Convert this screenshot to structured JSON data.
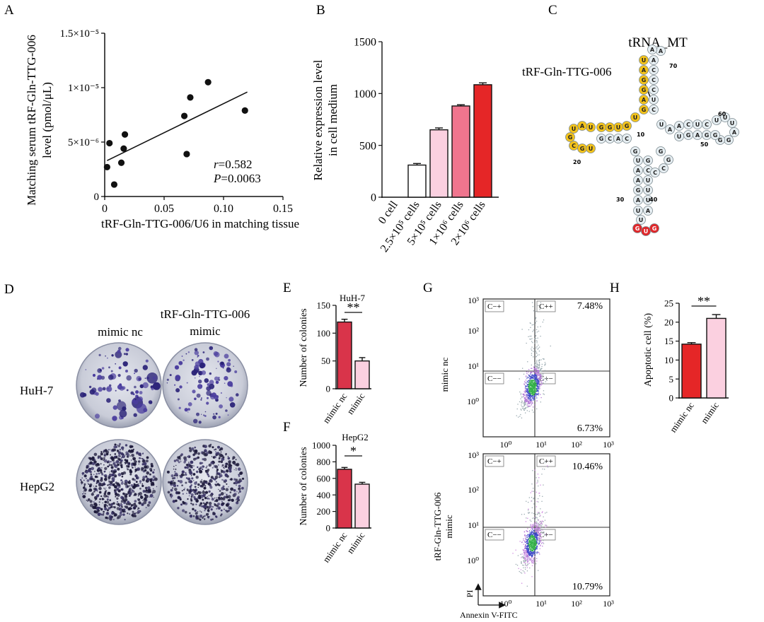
{
  "panel_labels": [
    "A",
    "B",
    "C",
    "D",
    "E",
    "F",
    "G",
    "H"
  ],
  "chart_data": [
    {
      "id": "A",
      "type": "scatter",
      "xlabel": "tRF-Gln-TTG-006/U6 in matching tissue",
      "ylabel_line1": "Matching serum tRF-Gln-TTG-006",
      "ylabel_line2": "level (pmol/μL)",
      "xlim": [
        0,
        0.15
      ],
      "ylim": [
        0,
        1.5e-05
      ],
      "xticks": [
        "0",
        "0.05",
        "0.10",
        "0.15"
      ],
      "yticks": [
        "0",
        "5×10⁻⁶",
        "1×10⁻⁵",
        "1.5×10⁻⁵"
      ],
      "points": [
        [
          0.002,
          2.7e-06
        ],
        [
          0.004,
          4.9e-06
        ],
        [
          0.008,
          1.1e-06
        ],
        [
          0.014,
          3.1e-06
        ],
        [
          0.016,
          4.4e-06
        ],
        [
          0.017,
          5.7e-06
        ],
        [
          0.067,
          7.4e-06
        ],
        [
          0.069,
          3.9e-06
        ],
        [
          0.072,
          9.1e-06
        ],
        [
          0.087,
          1.05e-05
        ],
        [
          0.118,
          7.9e-06
        ]
      ],
      "fit": [
        [
          0.002,
          3.3e-06
        ],
        [
          0.12,
          9.6e-06
        ]
      ],
      "stat_r_italic": "r",
      "stat_r_value": "=0.582",
      "stat_p_italic": "P",
      "stat_p_value": "=0.0063"
    },
    {
      "id": "B",
      "type": "bar",
      "ylabel_line1": "Relative expression level",
      "ylabel_line2": "in cell medium",
      "ylim": [
        0,
        1500
      ],
      "yticks": [
        "0",
        "500",
        "1000",
        "1500"
      ],
      "categories": [
        "0 cell",
        "2.5×10⁵ cells",
        "5×10⁵ cells",
        "1×10⁶ cells",
        "2×10⁶ cells"
      ],
      "values": [
        0,
        310,
        650,
        880,
        1085
      ],
      "errors": [
        0,
        15,
        18,
        12,
        18
      ],
      "colors": [
        "#ffffff",
        "#ffffff",
        "#fbd0e0",
        "#f0758e",
        "#e52627"
      ]
    },
    {
      "id": "E",
      "type": "bar",
      "title": "HuH-7",
      "ylabel": "Number of colonies",
      "ylim": [
        0,
        150
      ],
      "yticks": [
        "0",
        "50",
        "100",
        "150"
      ],
      "categories": [
        "mimic nc",
        "mimic"
      ],
      "values": [
        120,
        50
      ],
      "errors": [
        5,
        6
      ],
      "colors": [
        "#d9344a",
        "#fbd0e0"
      ],
      "significance": "**"
    },
    {
      "id": "F",
      "type": "bar",
      "title": "HepG2",
      "ylabel": "Number of colonies",
      "ylim": [
        0,
        1000
      ],
      "yticks": [
        "0",
        "200",
        "400",
        "600",
        "800",
        "1000"
      ],
      "categories": [
        "mimic nc",
        "mimic"
      ],
      "values": [
        710,
        530
      ],
      "errors": [
        22,
        22
      ],
      "colors": [
        "#d9344a",
        "#fbd0e0"
      ],
      "significance": "*"
    },
    {
      "id": "H",
      "type": "bar",
      "ylabel": "Apoptotic cell (%)",
      "ylim": [
        0,
        25
      ],
      "yticks": [
        "0",
        "5",
        "10",
        "15",
        "20",
        "25"
      ],
      "categories": [
        "mimic nc",
        "mimic"
      ],
      "values": [
        14.2,
        21
      ],
      "errors": [
        0.4,
        1.0
      ],
      "colors": [
        "#e52627",
        "#fbd0e0"
      ],
      "significance": "**"
    }
  ],
  "panel_c": {
    "title": "tRNA_MT",
    "annotation": "tRF-Gln-TTG-006",
    "numbers": [
      "70",
      "60",
      "50",
      "10",
      "20",
      "30",
      "40"
    ]
  },
  "panel_d": {
    "col1": "mimic nc",
    "col2_line1": "tRF-Gln-TTG-006",
    "col2_line2": "mimic",
    "row1": "HuH-7",
    "row2": "HepG2"
  },
  "panel_g": {
    "plot1_label": "mimic nc",
    "plot2_label_line1": "tRF-Gln-TTG-006",
    "plot2_label_line2": "mimic",
    "quadrants": [
      "C−+",
      "C++",
      "C−−",
      "C+−"
    ],
    "plot1_q_upper_right": "7.48%",
    "plot1_q_lower_right": "6.73%",
    "plot2_q_upper_right": "10.46%",
    "plot2_q_lower_right": "10.79%",
    "ticks": [
      "10⁰",
      "10¹",
      "10²",
      "10³"
    ],
    "xlabel": "Annexin V-FITC",
    "ylabel": "PI"
  }
}
